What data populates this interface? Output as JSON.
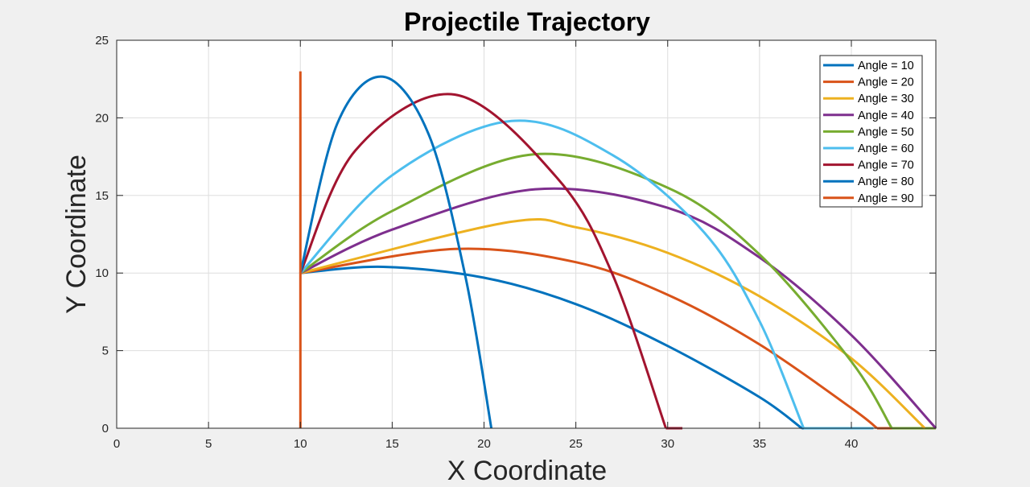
{
  "chart_data": {
    "type": "line",
    "title": "Projectile Trajectory",
    "xlabel": "X Coordinate",
    "ylabel": "Y Coordinate",
    "xlim": [
      0,
      44.6
    ],
    "ylim": [
      0,
      25
    ],
    "xticks": [
      0,
      5,
      10,
      15,
      20,
      25,
      30,
      35,
      40
    ],
    "yticks": [
      0,
      5,
      10,
      15,
      20,
      25
    ],
    "grid": true,
    "legend_position": "top-right",
    "series": [
      {
        "name": "Angle = 10",
        "color": "#0072BD",
        "x": [
          10,
          14.5,
          20,
          25,
          30,
          35,
          37.3
        ],
        "y": [
          10,
          10.4,
          9.7,
          8.0,
          5.3,
          2.0,
          0
        ]
      },
      {
        "name": "Angle = 20",
        "color": "#D95319",
        "x": [
          10,
          18.4,
          25,
          30,
          35,
          40,
          41.4
        ],
        "y": [
          10,
          11.55,
          10.7,
          8.6,
          5.4,
          1.3,
          0
        ]
      },
      {
        "name": "Angle = 30",
        "color": "#EDB120",
        "x": [
          10,
          21.2,
          25,
          30,
          35,
          40,
          44.0
        ],
        "y": [
          10,
          13.25,
          12.95,
          11.3,
          8.5,
          4.5,
          0
        ]
      },
      {
        "name": "Angle = 40",
        "color": "#7E2F8E",
        "x": [
          10,
          15,
          22.8,
          30,
          35,
          40,
          44.6
        ],
        "y": [
          10,
          12.8,
          15.4,
          14.2,
          11.0,
          6.0,
          0
        ]
      },
      {
        "name": "Angle = 50",
        "color": "#77AC30",
        "x": [
          10,
          15,
          22.7,
          30,
          35,
          40,
          42.2
        ],
        "y": [
          10,
          14.0,
          17.65,
          15.5,
          11.2,
          4.3,
          0
        ]
      },
      {
        "name": "Angle = 60",
        "color": "#4DBEEE",
        "x": [
          10,
          15,
          21.5,
          27,
          32,
          35,
          37.4
        ],
        "y": [
          10,
          16.3,
          19.8,
          17.6,
          12.6,
          6.9,
          0
        ]
      },
      {
        "name": "Angle = 70",
        "color": "#A2142F",
        "x": [
          10,
          13,
          18.4,
          24,
          27,
          29.9
        ],
        "y": [
          10,
          17.9,
          21.5,
          16.1,
          9.9,
          0
        ]
      },
      {
        "name": "Angle = 80",
        "color": "#0072BD",
        "x": [
          10,
          12,
          14.5,
          17,
          19,
          20.4
        ],
        "y": [
          10,
          19.6,
          22.65,
          18.9,
          9.7,
          0
        ]
      },
      {
        "name": "Angle = 90",
        "color": "#D95319",
        "x": [
          10,
          10
        ],
        "y": [
          0,
          23
        ]
      }
    ],
    "ground_segments": [
      {
        "name": "Angle = 10",
        "x": [
          37.3,
          40.4
        ]
      },
      {
        "name": "Angle = 20",
        "x": [
          41.4,
          44.6
        ]
      },
      {
        "name": "Angle = 30",
        "x": [
          44.0,
          44.6
        ]
      },
      {
        "name": "Angle = 50",
        "x": [
          42.2,
          44.6
        ]
      },
      {
        "name": "Angle = 60",
        "x": [
          37.4,
          41.2
        ]
      },
      {
        "name": "Angle = 70",
        "x": [
          29.9,
          30.8
        ]
      }
    ]
  }
}
